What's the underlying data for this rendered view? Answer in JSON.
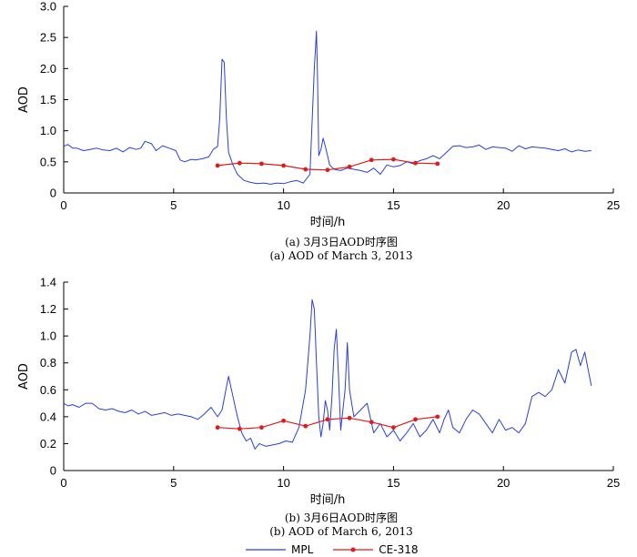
{
  "chart_data": [
    {
      "type": "line",
      "caption_zh": "(a) 3月3日AOD时序图",
      "caption_en": "(a) AOD of March 3, 2013",
      "xlabel": "时间/h",
      "ylabel": "AOD",
      "xlim": [
        0,
        25
      ],
      "ylim": [
        0,
        3.0
      ],
      "xticks": [
        0,
        5,
        10,
        15,
        20,
        25
      ],
      "yticks": [
        0,
        0.5,
        1.0,
        1.5,
        2.0,
        2.5,
        3.0
      ],
      "ytick_labels": [
        "0",
        "0.5",
        "1.0",
        "1.5",
        "2.0",
        "2.5",
        "3.0"
      ],
      "series": [
        {
          "name": "MPL",
          "color": "#2b3fd6",
          "marker": "none",
          "x": [
            0,
            0.2,
            0.4,
            0.6,
            0.9,
            1.2,
            1.5,
            1.8,
            2.1,
            2.4,
            2.7,
            3.0,
            3.3,
            3.5,
            3.7,
            4.0,
            4.2,
            4.5,
            4.8,
            5.1,
            5.3,
            5.5,
            5.8,
            6.0,
            6.3,
            6.6,
            6.8,
            7.0,
            7.1,
            7.2,
            7.3,
            7.4,
            7.5,
            7.7,
            7.9,
            8.2,
            8.5,
            8.8,
            9.1,
            9.4,
            9.7,
            10.0,
            10.3,
            10.6,
            10.9,
            11.2,
            11.4,
            11.5,
            11.55,
            11.6,
            11.7,
            11.8,
            11.9,
            12.0,
            12.1,
            12.3,
            12.6,
            12.9,
            13.2,
            13.5,
            13.8,
            14.1,
            14.4,
            14.7,
            15.0,
            15.3,
            15.6,
            15.9,
            16.2,
            16.5,
            16.8,
            17.1,
            17.4,
            17.7,
            18.0,
            18.3,
            18.6,
            18.9,
            19.2,
            19.5,
            19.8,
            20.1,
            20.4,
            20.7,
            21.0,
            21.3,
            21.6,
            21.9,
            22.2,
            22.5,
            22.8,
            23.1,
            23.4,
            23.7,
            24.0
          ],
          "y": [
            0.75,
            0.78,
            0.72,
            0.72,
            0.68,
            0.7,
            0.72,
            0.69,
            0.68,
            0.72,
            0.66,
            0.73,
            0.7,
            0.72,
            0.83,
            0.79,
            0.68,
            0.76,
            0.72,
            0.68,
            0.53,
            0.5,
            0.54,
            0.53,
            0.55,
            0.58,
            0.7,
            0.75,
            1.2,
            2.15,
            2.1,
            1.2,
            0.65,
            0.45,
            0.3,
            0.2,
            0.17,
            0.15,
            0.16,
            0.14,
            0.16,
            0.15,
            0.18,
            0.2,
            0.16,
            0.3,
            2.0,
            2.6,
            1.8,
            0.6,
            0.7,
            0.88,
            0.75,
            0.6,
            0.45,
            0.38,
            0.36,
            0.4,
            0.38,
            0.36,
            0.33,
            0.4,
            0.3,
            0.45,
            0.42,
            0.44,
            0.5,
            0.47,
            0.52,
            0.55,
            0.6,
            0.55,
            0.65,
            0.75,
            0.76,
            0.73,
            0.74,
            0.77,
            0.7,
            0.74,
            0.73,
            0.72,
            0.67,
            0.76,
            0.71,
            0.74,
            0.73,
            0.72,
            0.7,
            0.68,
            0.71,
            0.66,
            0.69,
            0.67,
            0.68
          ]
        },
        {
          "name": "CE-318",
          "color": "#e01b1b",
          "marker": "circle",
          "x": [
            7.0,
            8.0,
            9.0,
            10.0,
            11.0,
            12.0,
            13.0,
            14.0,
            15.0,
            16.0,
            17.0
          ],
          "y": [
            0.44,
            0.48,
            0.47,
            0.44,
            0.38,
            0.37,
            0.42,
            0.53,
            0.54,
            0.48,
            0.47
          ]
        }
      ]
    },
    {
      "type": "line",
      "caption_zh": "(b) 3月6日AOD时序图",
      "caption_en": "(b) AOD of March 6, 2013",
      "xlabel": "时间/h",
      "ylabel": "AOD",
      "xlim": [
        0,
        25
      ],
      "ylim": [
        0,
        1.4
      ],
      "xticks": [
        0,
        5,
        10,
        15,
        20,
        25
      ],
      "yticks": [
        0,
        0.2,
        0.4,
        0.6,
        0.8,
        1.0,
        1.2,
        1.4
      ],
      "ytick_labels": [
        "0",
        "0.2",
        "0.4",
        "0.6",
        "0.8",
        "1.0",
        "1.2",
        "1.4"
      ],
      "series": [
        {
          "name": "MPL",
          "color": "#2b3fd6",
          "marker": "none",
          "x": [
            0,
            0.2,
            0.4,
            0.7,
            1.0,
            1.3,
            1.6,
            1.9,
            2.2,
            2.5,
            2.8,
            3.1,
            3.4,
            3.7,
            4.0,
            4.3,
            4.6,
            4.9,
            5.2,
            5.5,
            5.8,
            6.1,
            6.4,
            6.7,
            7.0,
            7.2,
            7.4,
            7.5,
            7.7,
            7.9,
            8.1,
            8.3,
            8.5,
            8.7,
            8.9,
            9.2,
            9.5,
            9.8,
            10.1,
            10.4,
            10.7,
            11.0,
            11.2,
            11.3,
            11.4,
            11.5,
            11.6,
            11.7,
            11.8,
            11.9,
            12.0,
            12.1,
            12.2,
            12.3,
            12.4,
            12.5,
            12.6,
            12.7,
            12.8,
            12.9,
            13.0,
            13.2,
            13.5,
            13.8,
            14.1,
            14.4,
            14.7,
            15.0,
            15.3,
            15.6,
            15.9,
            16.2,
            16.5,
            16.8,
            17.1,
            17.3,
            17.5,
            17.7,
            18.0,
            18.3,
            18.6,
            18.9,
            19.2,
            19.5,
            19.8,
            20.1,
            20.4,
            20.7,
            21.0,
            21.3,
            21.6,
            21.9,
            22.2,
            22.5,
            22.8,
            23.1,
            23.3,
            23.5,
            23.7,
            24.0
          ],
          "y": [
            0.5,
            0.48,
            0.49,
            0.47,
            0.5,
            0.5,
            0.46,
            0.45,
            0.46,
            0.44,
            0.43,
            0.45,
            0.42,
            0.44,
            0.41,
            0.42,
            0.43,
            0.41,
            0.42,
            0.41,
            0.4,
            0.38,
            0.42,
            0.47,
            0.4,
            0.45,
            0.62,
            0.7,
            0.55,
            0.4,
            0.28,
            0.22,
            0.24,
            0.16,
            0.2,
            0.18,
            0.19,
            0.2,
            0.22,
            0.21,
            0.32,
            0.6,
            1.0,
            1.27,
            1.2,
            0.8,
            0.4,
            0.25,
            0.35,
            0.52,
            0.45,
            0.3,
            0.55,
            0.9,
            1.05,
            0.7,
            0.3,
            0.45,
            0.6,
            0.95,
            0.6,
            0.4,
            0.45,
            0.5,
            0.28,
            0.35,
            0.25,
            0.3,
            0.22,
            0.28,
            0.35,
            0.25,
            0.3,
            0.38,
            0.28,
            0.38,
            0.45,
            0.32,
            0.28,
            0.38,
            0.45,
            0.42,
            0.35,
            0.28,
            0.38,
            0.3,
            0.32,
            0.28,
            0.35,
            0.55,
            0.58,
            0.55,
            0.6,
            0.75,
            0.65,
            0.88,
            0.9,
            0.78,
            0.88,
            0.63
          ]
        },
        {
          "name": "CE-318",
          "color": "#e01b1b",
          "marker": "circle",
          "x": [
            7.0,
            8.0,
            9.0,
            10.0,
            11.0,
            12.0,
            13.0,
            14.0,
            15.0,
            16.0,
            17.0
          ],
          "y": [
            0.32,
            0.31,
            0.32,
            0.37,
            0.33,
            0.38,
            0.39,
            0.36,
            0.32,
            0.38,
            0.4
          ]
        }
      ]
    }
  ],
  "legend": {
    "mpl_label": "MPL",
    "ce_label": "CE-318",
    "mpl_color": "#2b3fd6",
    "ce_color": "#e01b1b"
  }
}
